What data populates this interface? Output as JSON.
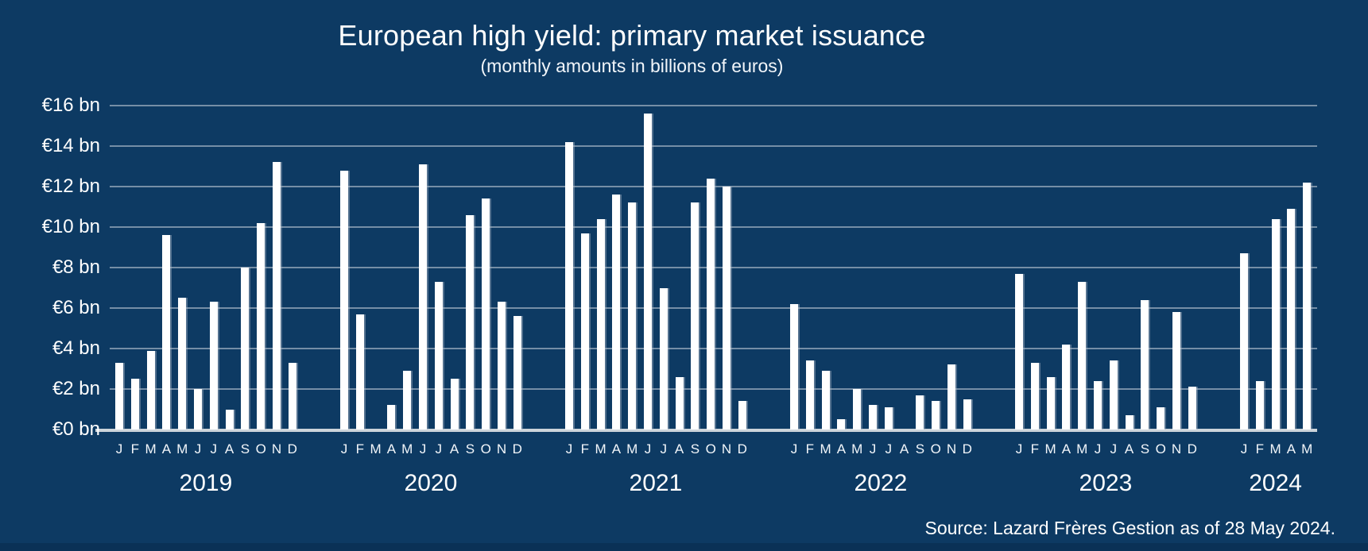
{
  "header": {
    "title": "European high yield: primary market issuance",
    "subtitle": "(monthly amounts in billions of euros)"
  },
  "footer": {
    "source": "Source: Lazard Frères Gestion as of 28 May 2024."
  },
  "y_axis": {
    "tick_labels": [
      "€0 bn",
      "€2 bn",
      "€4 bn",
      "€6 bn",
      "€8 bn",
      "€10 bn",
      "€12 bn",
      "€14 bn",
      "€16 bn"
    ]
  },
  "colors": {
    "background": "#0d3a63",
    "bottom_strip": "#0a3156",
    "bar": "#ffffff",
    "gridline": "rgba(186,199,212,0.6)",
    "baseline": "#ccd4db",
    "text": "#ffffff"
  },
  "chart_data": {
    "type": "bar",
    "title": "European high yield: primary market issuance",
    "subtitle": "(monthly amounts in billions of euros)",
    "unit": "billions of euros",
    "ylim": [
      0,
      16
    ],
    "ytick_step": 2,
    "grid": true,
    "legend": "none",
    "groups": [
      {
        "year": "2019",
        "months": [
          "J",
          "F",
          "M",
          "A",
          "M",
          "J",
          "J",
          "A",
          "S",
          "O",
          "N",
          "D"
        ],
        "values": [
          3.3,
          2.5,
          3.9,
          9.6,
          6.5,
          2.0,
          6.3,
          1.0,
          8.0,
          10.2,
          13.2,
          3.3
        ]
      },
      {
        "year": "2020",
        "months": [
          "J",
          "F",
          "M",
          "A",
          "M",
          "J",
          "J",
          "A",
          "S",
          "O",
          "N",
          "D"
        ],
        "values": [
          12.8,
          5.7,
          0,
          1.2,
          2.9,
          13.1,
          7.3,
          2.5,
          10.6,
          11.4,
          6.3,
          5.6
        ]
      },
      {
        "year": "2021",
        "months": [
          "J",
          "F",
          "M",
          "A",
          "M",
          "J",
          "J",
          "A",
          "S",
          "O",
          "N",
          "D"
        ],
        "values": [
          14.2,
          9.7,
          10.4,
          11.6,
          11.2,
          15.6,
          7.0,
          2.6,
          11.2,
          12.4,
          12.0,
          1.4
        ]
      },
      {
        "year": "2022",
        "months": [
          "J",
          "F",
          "M",
          "A",
          "M",
          "J",
          "J",
          "A",
          "S",
          "O",
          "N",
          "D"
        ],
        "values": [
          6.2,
          3.4,
          2.9,
          0.5,
          2.0,
          1.2,
          1.1,
          0,
          1.7,
          1.4,
          3.2,
          1.5
        ]
      },
      {
        "year": "2023",
        "months": [
          "J",
          "F",
          "M",
          "A",
          "M",
          "J",
          "J",
          "A",
          "S",
          "O",
          "N",
          "D"
        ],
        "values": [
          7.7,
          3.3,
          2.6,
          4.2,
          7.3,
          2.4,
          3.4,
          0.7,
          6.4,
          1.1,
          5.8,
          2.1
        ]
      },
      {
        "year": "2024",
        "months": [
          "J",
          "F",
          "M",
          "A",
          "M"
        ],
        "values": [
          8.7,
          2.4,
          10.4,
          10.9,
          12.2
        ]
      }
    ]
  }
}
